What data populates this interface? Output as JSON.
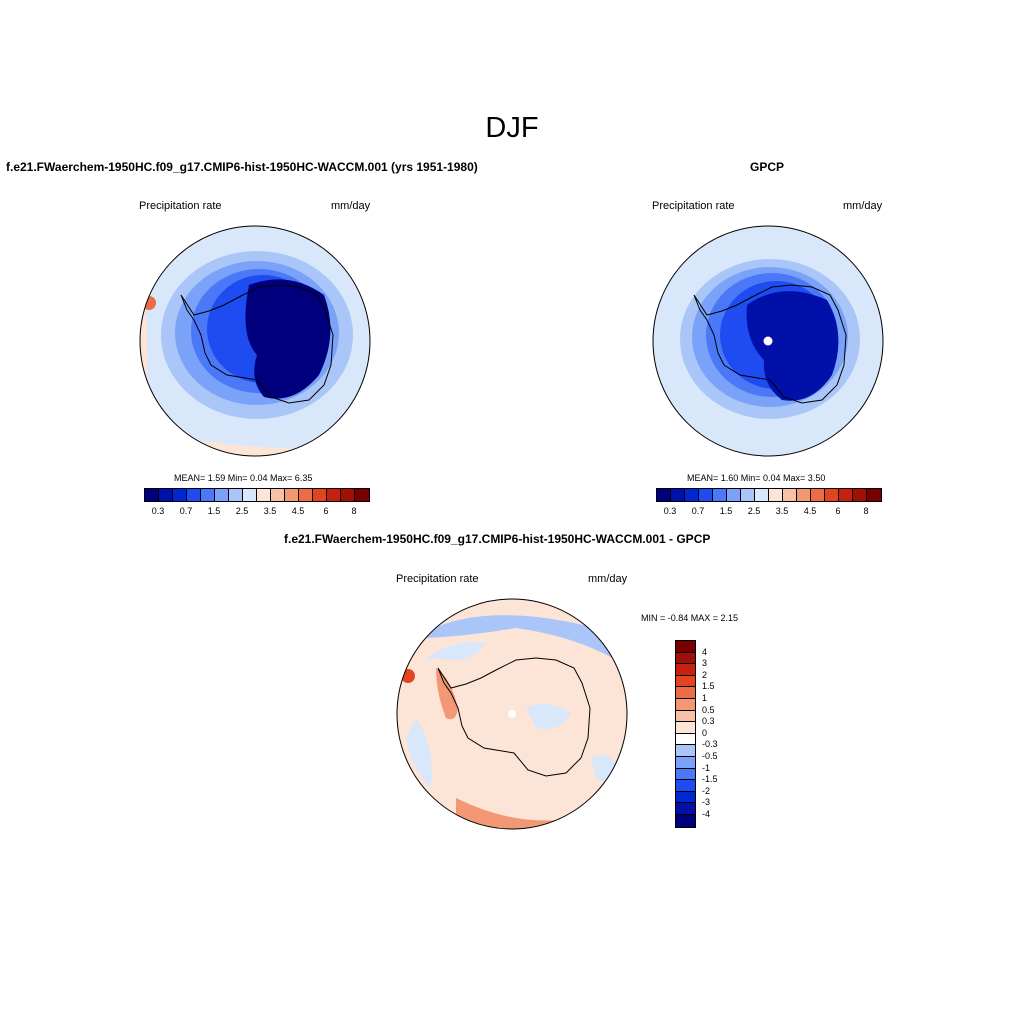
{
  "title": "DJF",
  "panels": {
    "model": {
      "title": "f.e21.FWaerchem-1950HC.f09_g17.CMIP6-hist-1950HC-WACCM.001 (yrs 1951-1980)",
      "left_label": "Precipitation rate",
      "right_label": "mm/day",
      "stats": "MEAN=   1.59  Min=   0.04  Max=   6.35"
    },
    "obs": {
      "title": "GPCP",
      "left_label": "Precipitation rate",
      "right_label": "mm/day",
      "stats": "MEAN=   1.60  Min=   0.04  Max=   3.50"
    },
    "diff": {
      "title": "f.e21.FWaerchem-1950HC.f09_g17.CMIP6-hist-1950HC-WACCM.001 - GPCP",
      "left_label": "Precipitation rate",
      "right_label": "mm/day",
      "stats": "MIN =  -0.84 MAX =   2.15"
    }
  },
  "colorbar": {
    "labels": [
      "0.3",
      "0.7",
      "1.5",
      "2.5",
      "3.5",
      "4.5",
      "6",
      "8"
    ],
    "colors": [
      "#00007f",
      "#0010a8",
      "#0028d0",
      "#1e4cf0",
      "#4a78f7",
      "#7aa2f8",
      "#aac6f8",
      "#d8e8fa",
      "#fce4d6",
      "#f8c0a4",
      "#f39874",
      "#ec6c46",
      "#e24422",
      "#c82010",
      "#a01008",
      "#780000"
    ]
  },
  "diff_colorbar": {
    "labels": [
      "4",
      "3",
      "2",
      "1.5",
      "1",
      "0.5",
      "0.3",
      "0",
      "-0.3",
      "-0.5",
      "-1",
      "-1.5",
      "-2",
      "-3",
      "-4"
    ],
    "colors": [
      "#780000",
      "#a01008",
      "#c82010",
      "#e24422",
      "#ec6c46",
      "#f39874",
      "#f8c0a4",
      "#fce4d6",
      "#ffffff",
      "#aac6f8",
      "#7aa2f8",
      "#4a78f7",
      "#1e4cf0",
      "#0028d0",
      "#0010a8",
      "#00007f"
    ]
  },
  "map_fill": {
    "model": [
      "#d8e8fa",
      "#aac6f8",
      "#7aa2f8",
      "#4a78f7",
      "#1e4cf0",
      "#00007f"
    ],
    "obs": [
      "#d8e8fa",
      "#aac6f8",
      "#7aa2f8",
      "#4a78f7",
      "#1e4cf0",
      "#0010a8"
    ],
    "diff_base": "#fce4d6",
    "diff_blue": "#d8e8fa",
    "diff_red": "#f39874"
  }
}
